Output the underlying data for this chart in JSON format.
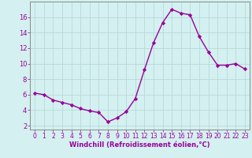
{
  "x": [
    0,
    1,
    2,
    3,
    4,
    5,
    6,
    7,
    8,
    9,
    10,
    11,
    12,
    13,
    14,
    15,
    16,
    17,
    18,
    19,
    20,
    21,
    22,
    23
  ],
  "y": [
    6.2,
    6.0,
    5.3,
    5.0,
    4.7,
    4.2,
    3.9,
    3.7,
    2.5,
    3.0,
    3.8,
    5.5,
    9.2,
    12.7,
    15.3,
    17.0,
    16.5,
    16.3,
    13.5,
    11.5,
    9.8,
    9.8,
    10.0,
    9.3
  ],
  "line_color": "#990099",
  "marker": "D",
  "marker_size": 2.2,
  "bg_color": "#d4f0f0",
  "grid_color": "#b8dada",
  "tick_label_color": "#990099",
  "axis_label_color": "#990099",
  "xlabel": "Windchill (Refroidissement éolien,°C)",
  "xlim": [
    -0.5,
    23.5
  ],
  "ylim": [
    1.5,
    18.0
  ],
  "yticks": [
    2,
    4,
    6,
    8,
    10,
    12,
    14,
    16
  ],
  "xticks": [
    0,
    1,
    2,
    3,
    4,
    5,
    6,
    7,
    8,
    9,
    10,
    11,
    12,
    13,
    14,
    15,
    16,
    17,
    18,
    19,
    20,
    21,
    22,
    23
  ],
  "linewidth": 1.0,
  "spine_color": "#888888",
  "xlabel_fontsize": 6.0,
  "xtick_fontsize": 5.5,
  "ytick_fontsize": 6.0
}
